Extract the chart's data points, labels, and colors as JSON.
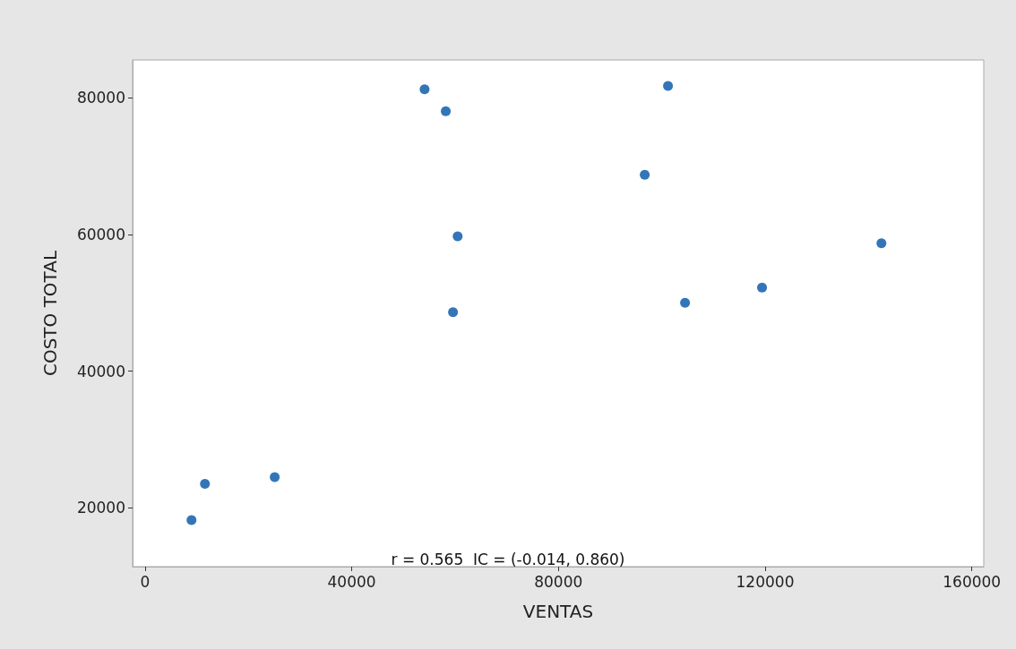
{
  "chart_data": {
    "type": "scatter",
    "xlabel": "VENTAS",
    "ylabel": "COSTO TOTAL",
    "x": [
      9000,
      11600,
      25100,
      54100,
      58200,
      60500,
      59600,
      96700,
      101200,
      104500,
      119400,
      142500
    ],
    "series": [
      {
        "color": "#0054a6",
        "values": [
          18200,
          23500,
          24500,
          81200,
          78000,
          59700,
          48600,
          68700,
          81700,
          50000,
          52200,
          58700
        ]
      }
    ],
    "xlim": [
      -2400,
      162300
    ],
    "xticks": [
      0,
      40000,
      80000,
      120000,
      160000
    ],
    "ylim": [
      11400,
      85500
    ],
    "yticks": [
      20000,
      40000,
      60000,
      80000
    ],
    "grid": false,
    "marker": "circle",
    "annotations": [
      "r = 0.565  IC = (-0.014, 0.860)"
    ]
  }
}
